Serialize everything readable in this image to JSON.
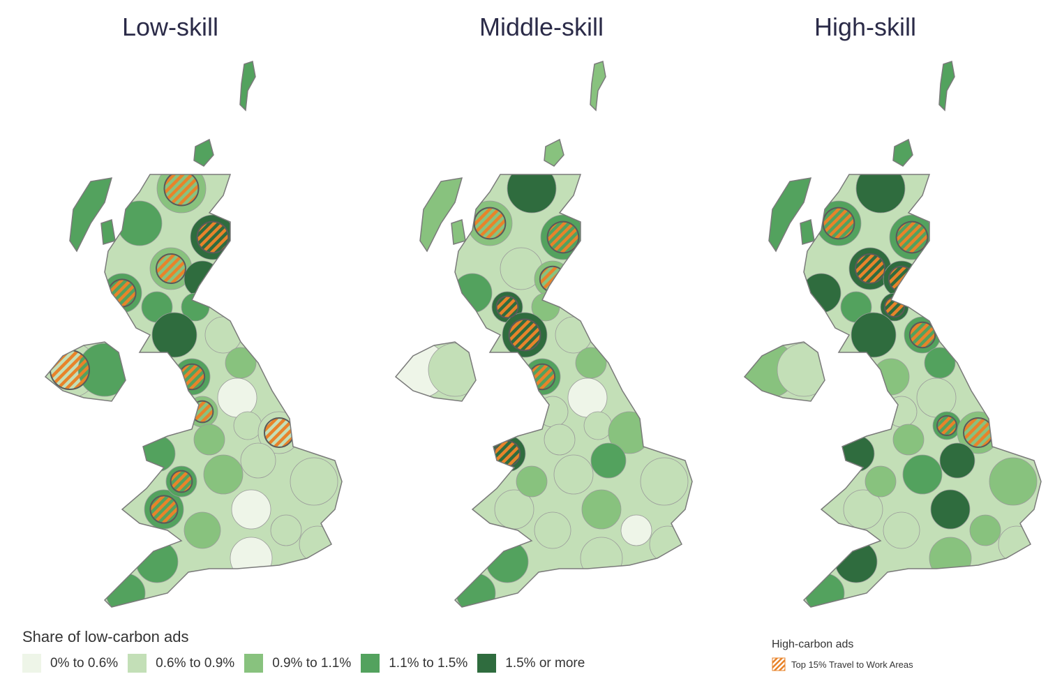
{
  "titles": [
    "Low-skill",
    "Middle-skill",
    "High-skill"
  ],
  "legend": {
    "title": "Share of low-carbon ads",
    "classes": [
      {
        "label": "0% to 0.6%",
        "color": "#eef5e8"
      },
      {
        "label": "0.6% to 0.9%",
        "color": "#c3dfb7"
      },
      {
        "label": "0.9% to 1.1%",
        "color": "#88c27e"
      },
      {
        "label": "1.1% to 1.5%",
        "color": "#53a25e"
      },
      {
        "label": "1.5% or more",
        "color": "#2f6c3e"
      }
    ]
  },
  "high_carbon_legend": {
    "title": "High-carbon ads",
    "label": "Top 15% Travel to Work Areas",
    "hatch_color": "#e8832a"
  },
  "panels": [
    {
      "name": "Low-skill",
      "classes": [
        2,
        3,
        4,
        2,
        4,
        3,
        3,
        3,
        4,
        3,
        1,
        2,
        0,
        2,
        1,
        1,
        2,
        3,
        3,
        3,
        2,
        1,
        1,
        0,
        1,
        1,
        2,
        0,
        3,
        3,
        1,
        3
      ],
      "hatched": [
        0,
        2,
        3,
        5,
        9,
        13,
        15,
        18,
        19,
        30
      ],
      "island_class": 3
    },
    {
      "name": "Middle-skill",
      "classes": [
        4,
        2,
        3,
        1,
        2,
        3,
        4,
        2,
        4,
        3,
        1,
        2,
        0,
        1,
        1,
        2,
        1,
        4,
        1,
        2,
        1,
        3,
        1,
        2,
        0,
        1,
        1,
        1,
        3,
        3,
        0,
        1
      ],
      "hatched": [
        1,
        2,
        4,
        6,
        8,
        9,
        17
      ],
      "island_class": 2
    },
    {
      "name": "High-skill",
      "classes": [
        4,
        3,
        3,
        4,
        4,
        4,
        3,
        4,
        4,
        2,
        3,
        3,
        1,
        1,
        3,
        2,
        2,
        4,
        1,
        2,
        3,
        4,
        2,
        4,
        2,
        1,
        1,
        2,
        4,
        3,
        2,
        1
      ],
      "hatched": [
        1,
        2,
        3,
        4,
        7,
        10,
        14,
        15
      ],
      "island_class": 3
    }
  ]
}
